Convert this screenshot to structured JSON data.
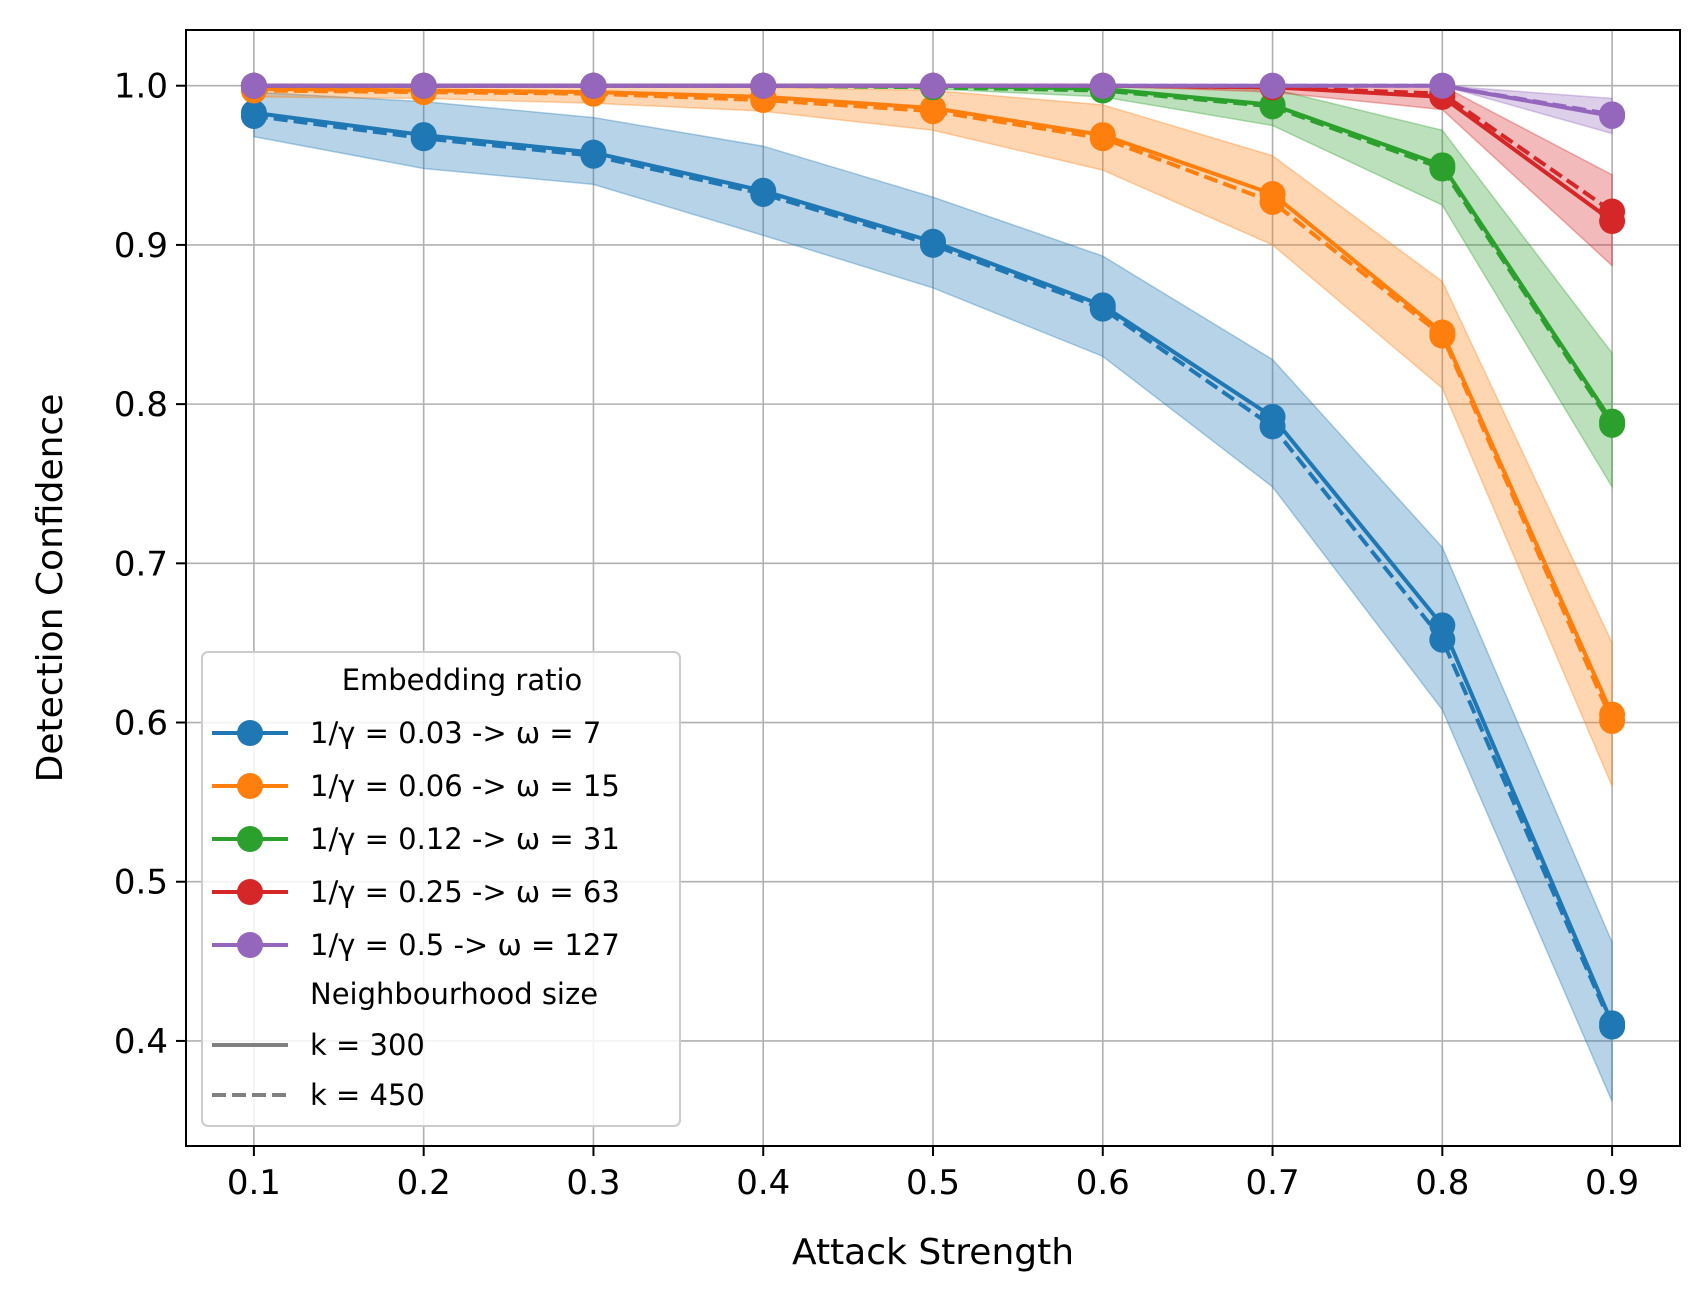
{
  "chart_data": {
    "type": "line",
    "xlabel": "Attack Strength",
    "ylabel": "Detection Confidence",
    "x": [
      0.1,
      0.2,
      0.3,
      0.4,
      0.5,
      0.6,
      0.7,
      0.8,
      0.9
    ],
    "xlim": [
      0.06,
      0.94
    ],
    "ylim": [
      0.334,
      1.035
    ],
    "xticks": [
      "0.1",
      "0.2",
      "0.3",
      "0.4",
      "0.5",
      "0.6",
      "0.7",
      "0.8",
      "0.9"
    ],
    "yticks": [
      "0.4",
      "0.5",
      "0.6",
      "0.7",
      "0.8",
      "0.9",
      "1.0"
    ],
    "grid": true,
    "legend": {
      "placement": "lower-left",
      "title1": "Embedding ratio",
      "title2": "Neighbourhood size",
      "style_entries": [
        {
          "label": "k = 300",
          "dash": "solid"
        },
        {
          "label": "k = 450",
          "dash": "dashed"
        }
      ]
    },
    "series": [
      {
        "name": "1/γ = 0.03 -> ω = 7",
        "color": "#1f77b4",
        "k300": [
          0.983,
          0.969,
          0.958,
          0.934,
          0.902,
          0.862,
          0.792,
          0.661,
          0.411
        ],
        "k450": [
          0.981,
          0.967,
          0.956,
          0.932,
          0.9,
          0.86,
          0.786,
          0.652,
          0.409
        ],
        "band_upper": [
          0.996,
          0.99,
          0.98,
          0.962,
          0.93,
          0.893,
          0.828,
          0.71,
          0.462
        ],
        "band_lower": [
          0.968,
          0.948,
          0.938,
          0.906,
          0.873,
          0.83,
          0.748,
          0.608,
          0.362
        ]
      },
      {
        "name": "1/γ = 0.06 -> ω = 15",
        "color": "#ff7f0e",
        "k300": [
          0.998,
          0.997,
          0.996,
          0.993,
          0.986,
          0.969,
          0.932,
          0.845,
          0.605
        ],
        "k450": [
          0.997,
          0.996,
          0.995,
          0.991,
          0.984,
          0.967,
          0.927,
          0.843,
          0.601
        ],
        "band_upper": [
          1.0,
          1.0,
          1.0,
          0.999,
          0.997,
          0.988,
          0.956,
          0.877,
          0.65
        ],
        "band_lower": [
          0.993,
          0.992,
          0.989,
          0.984,
          0.972,
          0.947,
          0.9,
          0.81,
          0.56
        ]
      },
      {
        "name": "1/γ = 0.12 -> ω = 31",
        "color": "#2ca02c",
        "k300": [
          1.0,
          1.0,
          1.0,
          1.0,
          1.0,
          0.998,
          0.988,
          0.95,
          0.789
        ],
        "k450": [
          1.0,
          1.0,
          1.0,
          1.0,
          0.999,
          0.997,
          0.987,
          0.948,
          0.787
        ],
        "band_upper": [
          1.0,
          1.0,
          1.0,
          1.0,
          1.0,
          1.0,
          0.998,
          0.972,
          0.832
        ],
        "band_lower": [
          1.0,
          1.0,
          1.0,
          1.0,
          0.998,
          0.993,
          0.975,
          0.925,
          0.748
        ]
      },
      {
        "name": "1/γ = 0.25 -> ω = 63",
        "color": "#d62728",
        "k300": [
          1.0,
          1.0,
          1.0,
          1.0,
          1.0,
          1.0,
          0.999,
          0.993,
          0.915
        ],
        "k450": [
          1.0,
          1.0,
          1.0,
          1.0,
          1.0,
          1.0,
          0.999,
          0.995,
          0.921
        ],
        "band_upper": [
          1.0,
          1.0,
          1.0,
          1.0,
          1.0,
          1.0,
          1.0,
          1.0,
          0.944
        ],
        "band_lower": [
          1.0,
          1.0,
          1.0,
          1.0,
          1.0,
          1.0,
          0.996,
          0.985,
          0.887
        ]
      },
      {
        "name": "1/γ = 0.5 -> ω = 127",
        "color": "#9467bd",
        "k300": [
          1.0,
          1.0,
          1.0,
          1.0,
          1.0,
          1.0,
          1.0,
          1.0,
          0.981
        ],
        "k450": [
          1.0,
          1.0,
          1.0,
          1.0,
          1.0,
          1.0,
          1.0,
          1.0,
          0.982
        ],
        "band_upper": [
          1.0,
          1.0,
          1.0,
          1.0,
          1.0,
          1.0,
          1.0,
          1.0,
          0.992
        ],
        "band_lower": [
          1.0,
          1.0,
          1.0,
          1.0,
          1.0,
          1.0,
          1.0,
          1.0,
          0.97
        ]
      }
    ]
  }
}
